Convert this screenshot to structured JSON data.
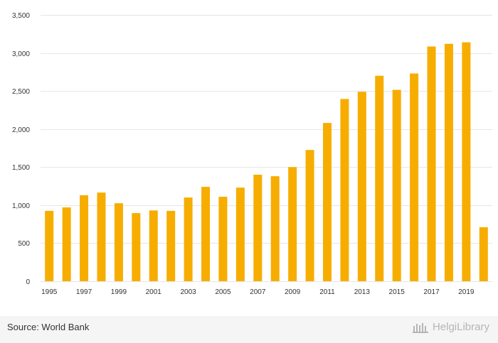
{
  "chart_data": {
    "type": "bar",
    "categories": [
      "1995",
      "1996",
      "1997",
      "1998",
      "1999",
      "2000",
      "2001",
      "2002",
      "2003",
      "2004",
      "2005",
      "2006",
      "2007",
      "2008",
      "2009",
      "2010",
      "2011",
      "2012",
      "2013",
      "2014",
      "2015",
      "2016",
      "2017",
      "2018",
      "2019",
      "2020"
    ],
    "x_tick_labels": [
      "1995",
      "1997",
      "1999",
      "2001",
      "2003",
      "2005",
      "2007",
      "2009",
      "2011",
      "2013",
      "2015",
      "2017",
      "2019"
    ],
    "values": [
      925,
      970,
      1130,
      1165,
      1025,
      895,
      930,
      925,
      1100,
      1240,
      1110,
      1230,
      1400,
      1380,
      1500,
      1725,
      2080,
      2395,
      2490,
      2700,
      2515,
      2730,
      3085,
      3120,
      3140,
      710
    ],
    "ylim": [
      0,
      3500
    ],
    "y_ticks": [
      0,
      500,
      1000,
      1500,
      2000,
      2500,
      3000,
      3500
    ],
    "y_tick_labels": [
      "0",
      "500",
      "1,000",
      "1,500",
      "2,000",
      "2,500",
      "3,000",
      "3,500"
    ],
    "grid": true,
    "bar_color": "#f7ad00"
  },
  "footer": {
    "source": "Source: World Bank",
    "brand": "HelgiLibrary"
  }
}
